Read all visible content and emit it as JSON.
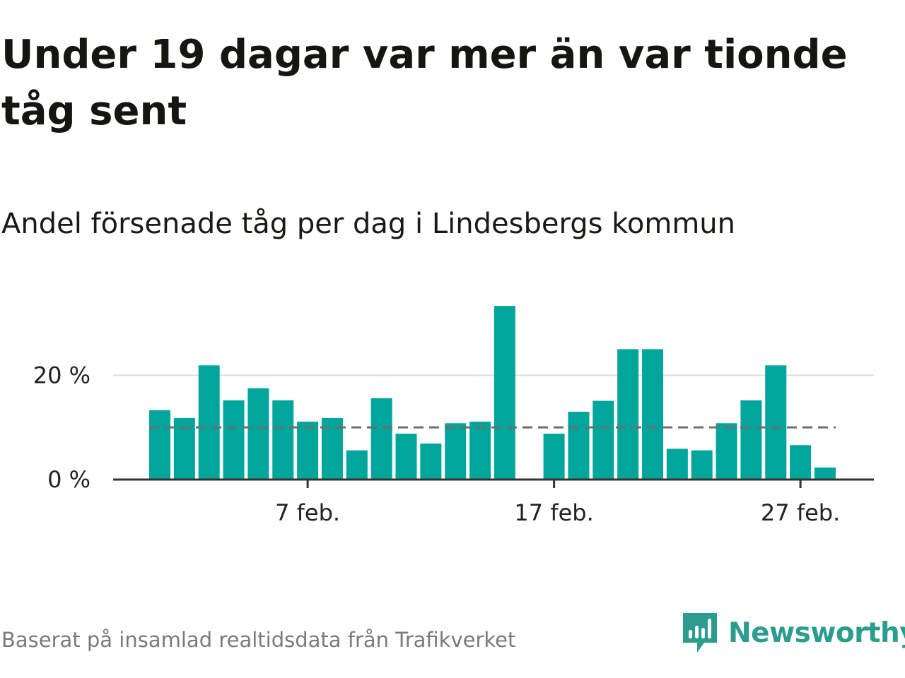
{
  "title": "Under 19 dagar var mer än var tionde tåg sent",
  "subtitle": "Andel försenade tåg per dag i Lindesbergs kommun",
  "source": "Baserat på insamlad realtidsdata från Trafikverket",
  "brand": {
    "name": "Newsworthy",
    "icon": "newsworthy-logo-icon"
  },
  "colors": {
    "bars": "#00a59c",
    "reference_line": "#6e6e6e",
    "axis": "#333333",
    "grid": "#dddddd",
    "brand": "#2a9d8f"
  },
  "chart_data": {
    "type": "bar",
    "title": "Under 19 dagar var mer än var tionde tåg sent",
    "subtitle": "Andel försenade tåg per dag i Lindesbergs kommun",
    "x_type": "date",
    "x": [
      "2021-02-01",
      "2021-02-02",
      "2021-02-03",
      "2021-02-04",
      "2021-02-05",
      "2021-02-06",
      "2021-02-07",
      "2021-02-08",
      "2021-02-09",
      "2021-02-10",
      "2021-02-11",
      "2021-02-12",
      "2021-02-13",
      "2021-02-14",
      "2021-02-15",
      "2021-02-16",
      "2021-02-17",
      "2021-02-18",
      "2021-02-19",
      "2021-02-20",
      "2021-02-21",
      "2021-02-22",
      "2021-02-23",
      "2021-02-24",
      "2021-02-25",
      "2021-02-26",
      "2021-02-27",
      "2021-02-28"
    ],
    "values": [
      13.3,
      11.8,
      21.9,
      15.2,
      17.5,
      15.2,
      11.1,
      11.8,
      5.6,
      15.6,
      8.8,
      6.9,
      10.8,
      11.1,
      33.3,
      null,
      8.8,
      13.0,
      15.1,
      25.0,
      25.0,
      5.9,
      5.6,
      10.8,
      15.2,
      21.9,
      6.6,
      2.3
    ],
    "reference_line": {
      "value": 10,
      "style": "dashed"
    },
    "ylim": [
      0,
      34
    ],
    "yticks": [
      0,
      20
    ],
    "ytick_labels": [
      "0 %",
      "20 %"
    ],
    "xtick_dates": [
      "2021-02-07",
      "2021-02-17",
      "2021-02-27"
    ],
    "xtick_labels": [
      "7 feb.",
      "17 feb.",
      "27 feb."
    ],
    "xlabel": "",
    "ylabel": "",
    "grid": "horizontal",
    "legend": "none"
  }
}
